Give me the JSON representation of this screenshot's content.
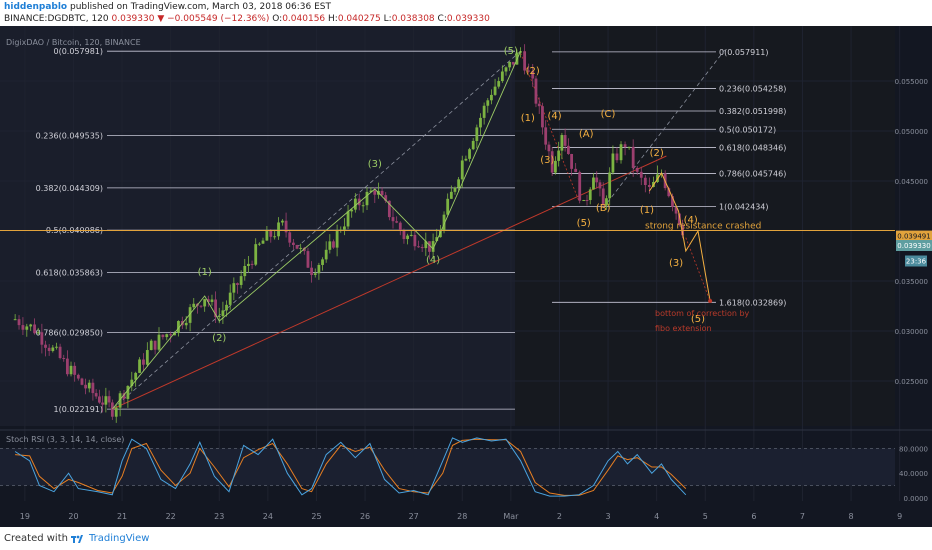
{
  "header": {
    "author": "hiddenpablo",
    "published": "published on TradingView.com, March 03, 2018 06:36 EST",
    "symbol": "BINANCE:DGDBTC, 120",
    "last": "0.039330",
    "change": "−0.005549 (−12.36%)",
    "o_label": "O:",
    "o": "0.040156",
    "h_label": "H:",
    "h": "0.040275",
    "l_label": "L:",
    "l": "0.038308",
    "c_label": "C:",
    "c": "0.039330"
  },
  "footer": {
    "created": "Created with",
    "brand": "TradingView"
  },
  "colors": {
    "background": "#131722",
    "up": "#7cb342",
    "down": "#9c3f6e",
    "wave_green": "#9ccc65",
    "wave_orange": "#f5b041",
    "fib": "#c8c8d8",
    "trend_red": "#c0392b",
    "stoch_k": "#4aa3df",
    "stoch_d": "#e67e22",
    "last_price_bg": "#5f9ea0",
    "resistance": "#e2a33c"
  },
  "chart_data": [
    {
      "type": "line",
      "title": "DigixDAO / Bitcoin, 120, BINANCE",
      "x_ticks": [
        "19",
        "20",
        "21",
        "22",
        "23",
        "24",
        "25",
        "26",
        "27",
        "28",
        "Mar",
        "2",
        "3",
        "4",
        "5",
        "6",
        "7",
        "8",
        "9"
      ],
      "y_ticks": [
        "0.055000",
        "0.050000",
        "0.045000",
        "0.035000",
        "0.030000",
        "0.025000"
      ],
      "ylim": [
        0.0205,
        0.0605
      ],
      "price_labels": {
        "resistance": "0.039491",
        "last": "0.039330",
        "countdown": "23:36"
      },
      "price_path": [
        {
          "day": 18.8,
          "price": 0.0312
        },
        {
          "day": 19.2,
          "price": 0.0302
        },
        {
          "day": 19.5,
          "price": 0.0285
        },
        {
          "day": 19.8,
          "price": 0.0268
        },
        {
          "day": 20.1,
          "price": 0.025
        },
        {
          "day": 20.4,
          "price": 0.0238
        },
        {
          "day": 20.6,
          "price": 0.023
        },
        {
          "day": 20.8,
          "price": 0.02219
        },
        {
          "day": 21.2,
          "price": 0.0252
        },
        {
          "day": 21.6,
          "price": 0.0285
        },
        {
          "day": 22.0,
          "price": 0.03
        },
        {
          "day": 22.4,
          "price": 0.032
        },
        {
          "day": 22.7,
          "price": 0.0335
        },
        {
          "day": 23.0,
          "price": 0.0315
        },
        {
          "day": 23.3,
          "price": 0.034
        },
        {
          "day": 23.6,
          "price": 0.0368
        },
        {
          "day": 23.9,
          "price": 0.039
        },
        {
          "day": 24.3,
          "price": 0.0405
        },
        {
          "day": 24.6,
          "price": 0.0385
        },
        {
          "day": 24.9,
          "price": 0.0362
        },
        {
          "day": 25.2,
          "price": 0.0375
        },
        {
          "day": 25.5,
          "price": 0.0405
        },
        {
          "day": 25.8,
          "price": 0.0425
        },
        {
          "day": 26.2,
          "price": 0.0442
        },
        {
          "day": 26.5,
          "price": 0.0418
        },
        {
          "day": 26.8,
          "price": 0.0395
        },
        {
          "day": 27.1,
          "price": 0.0392
        },
        {
          "day": 27.4,
          "price": 0.0382
        },
        {
          "day": 27.7,
          "price": 0.0425
        },
        {
          "day": 28.0,
          "price": 0.047
        },
        {
          "day": 28.3,
          "price": 0.0505
        },
        {
          "day": 28.6,
          "price": 0.054
        },
        {
          "day": 28.9,
          "price": 0.056
        },
        {
          "day": 29.2,
          "price": 0.05798
        },
        {
          "day": 29.45,
          "price": 0.0545
        },
        {
          "day": 29.65,
          "price": 0.0505
        },
        {
          "day": 29.85,
          "price": 0.0465
        },
        {
          "day": 30.05,
          "price": 0.05
        },
        {
          "day": 30.25,
          "price": 0.0468
        },
        {
          "day": 30.5,
          "price": 0.0423
        },
        {
          "day": 30.7,
          "price": 0.046
        },
        {
          "day": 30.9,
          "price": 0.0423
        },
        {
          "day": 31.1,
          "price": 0.047
        },
        {
          "day": 31.35,
          "price": 0.0488
        },
        {
          "day": 31.6,
          "price": 0.0455
        },
        {
          "day": 31.85,
          "price": 0.044
        },
        {
          "day": 32.1,
          "price": 0.0458
        },
        {
          "day": 32.4,
          "price": 0.042
        },
        {
          "day": 32.6,
          "price": 0.03933
        }
      ],
      "fib_left": [
        {
          "label": "0(0.057981)",
          "price": 0.057981
        },
        {
          "label": "0.236(0.049535)",
          "price": 0.049535
        },
        {
          "label": "0.382(0.044309)",
          "price": 0.044309
        },
        {
          "label": "0.5(0.040086)",
          "price": 0.040086
        },
        {
          "label": "0.618(0.035863)",
          "price": 0.035863
        },
        {
          "label": "0.786(0.029850)",
          "price": 0.02985
        },
        {
          "label": "1(0.022191)",
          "price": 0.022191
        }
      ],
      "fib_right": [
        {
          "label": "0(0.057911)",
          "price": 0.057911
        },
        {
          "label": "0.236(0.054258)",
          "price": 0.054258
        },
        {
          "label": "0.382(0.051998)",
          "price": 0.051998
        },
        {
          "label": "0.5(0.050172)",
          "price": 0.050172
        },
        {
          "label": "0.618(0.048346)",
          "price": 0.048346
        },
        {
          "label": "0.786(0.045746)",
          "price": 0.045746
        },
        {
          "label": "1(0.042434)",
          "price": 0.042434
        },
        {
          "label": "1.618(0.032869)",
          "price": 0.032869
        }
      ],
      "wave_path": [
        {
          "day": 20.8,
          "price": 0.02219
        },
        {
          "day": 22.7,
          "price": 0.0335
        },
        {
          "day": 23.0,
          "price": 0.031
        },
        {
          "day": 26.2,
          "price": 0.0442
        },
        {
          "day": 27.4,
          "price": 0.0382
        },
        {
          "day": 29.2,
          "price": 0.05798
        }
      ],
      "projection_path": [
        {
          "day": 31.85,
          "price": 0.044
        },
        {
          "day": 32.1,
          "price": 0.0458
        },
        {
          "day": 32.45,
          "price": 0.042
        },
        {
          "day": 32.6,
          "price": 0.038
        },
        {
          "day": 32.85,
          "price": 0.04
        },
        {
          "day": 33.1,
          "price": 0.033
        }
      ],
      "wave_labels": [
        {
          "text": "(1)",
          "day": 22.7,
          "price": 0.0356,
          "color": "green"
        },
        {
          "text": "(2)",
          "day": 23.0,
          "price": 0.029,
          "color": "green"
        },
        {
          "text": "(3)",
          "day": 26.2,
          "price": 0.0464,
          "color": "green"
        },
        {
          "text": "(4)",
          "day": 27.4,
          "price": 0.0368,
          "color": "green"
        },
        {
          "text": "(5)",
          "day": 29.0,
          "price": 0.0577,
          "color": "green"
        },
        {
          "text": "(2)",
          "day": 29.45,
          "price": 0.0557,
          "color": "orange"
        },
        {
          "text": "(1)",
          "day": 29.35,
          "price": 0.051,
          "color": "orange"
        },
        {
          "text": "(4)",
          "day": 29.9,
          "price": 0.0512,
          "color": "orange"
        },
        {
          "text": "(3)",
          "day": 29.75,
          "price": 0.0468,
          "color": "orange"
        },
        {
          "text": "(A)",
          "day": 30.55,
          "price": 0.0494,
          "color": "orange"
        },
        {
          "text": "(C)",
          "day": 31.0,
          "price": 0.0514,
          "color": "orange"
        },
        {
          "text": "(5)",
          "day": 30.5,
          "price": 0.0405,
          "color": "orange"
        },
        {
          "text": "(B)",
          "day": 30.9,
          "price": 0.042,
          "color": "orange"
        },
        {
          "text": "(2)",
          "day": 32.0,
          "price": 0.0475,
          "color": "orange"
        },
        {
          "text": "(1)",
          "day": 31.8,
          "price": 0.0418,
          "color": "orange"
        },
        {
          "text": "(4)",
          "day": 32.7,
          "price": 0.0408,
          "color": "orange"
        },
        {
          "text": "(3)",
          "day": 32.4,
          "price": 0.0365,
          "color": "orange"
        },
        {
          "text": "(5)",
          "day": 32.85,
          "price": 0.0309,
          "color": "orange"
        }
      ],
      "annotations": {
        "resistance": "strong resistance crashed",
        "target_line1": "bottom of correction by",
        "target_line2": "fibo extension"
      }
    },
    {
      "type": "line",
      "title": "Stoch RSI (3, 3, 14, 14, close)",
      "y_ticks": [
        "80.0000",
        "40.0000",
        "0.0000"
      ],
      "ylim": [
        -5,
        105
      ],
      "levels": [
        80,
        20
      ],
      "k": [
        {
          "day": 18.8,
          "v": 75
        },
        {
          "day": 19.1,
          "v": 60
        },
        {
          "day": 19.3,
          "v": 20
        },
        {
          "day": 19.6,
          "v": 10
        },
        {
          "day": 19.9,
          "v": 40
        },
        {
          "day": 20.1,
          "v": 15
        },
        {
          "day": 20.5,
          "v": 10
        },
        {
          "day": 20.8,
          "v": 5
        },
        {
          "day": 21.0,
          "v": 60
        },
        {
          "day": 21.2,
          "v": 95
        },
        {
          "day": 21.5,
          "v": 80
        },
        {
          "day": 21.8,
          "v": 30
        },
        {
          "day": 22.1,
          "v": 15
        },
        {
          "day": 22.4,
          "v": 55
        },
        {
          "day": 22.6,
          "v": 90
        },
        {
          "day": 22.9,
          "v": 35
        },
        {
          "day": 23.2,
          "v": 10
        },
        {
          "day": 23.5,
          "v": 85
        },
        {
          "day": 23.8,
          "v": 70
        },
        {
          "day": 24.1,
          "v": 95
        },
        {
          "day": 24.4,
          "v": 40
        },
        {
          "day": 24.7,
          "v": 5
        },
        {
          "day": 24.9,
          "v": 15
        },
        {
          "day": 25.2,
          "v": 70
        },
        {
          "day": 25.5,
          "v": 90
        },
        {
          "day": 25.8,
          "v": 65
        },
        {
          "day": 26.1,
          "v": 88
        },
        {
          "day": 26.4,
          "v": 30
        },
        {
          "day": 26.7,
          "v": 8
        },
        {
          "day": 27.0,
          "v": 12
        },
        {
          "day": 27.3,
          "v": 5
        },
        {
          "day": 27.6,
          "v": 60
        },
        {
          "day": 27.8,
          "v": 97
        },
        {
          "day": 28.0,
          "v": 90
        },
        {
          "day": 28.3,
          "v": 97
        },
        {
          "day": 28.6,
          "v": 92
        },
        {
          "day": 28.9,
          "v": 95
        },
        {
          "day": 29.2,
          "v": 60
        },
        {
          "day": 29.5,
          "v": 10
        },
        {
          "day": 29.8,
          "v": 3
        },
        {
          "day": 30.1,
          "v": 3
        },
        {
          "day": 30.4,
          "v": 5
        },
        {
          "day": 30.7,
          "v": 20
        },
        {
          "day": 31.0,
          "v": 60
        },
        {
          "day": 31.2,
          "v": 75
        },
        {
          "day": 31.4,
          "v": 55
        },
        {
          "day": 31.6,
          "v": 70
        },
        {
          "day": 31.9,
          "v": 40
        },
        {
          "day": 32.1,
          "v": 55
        },
        {
          "day": 32.3,
          "v": 30
        },
        {
          "day": 32.6,
          "v": 5
        }
      ],
      "d": [
        {
          "day": 18.8,
          "v": 70
        },
        {
          "day": 19.1,
          "v": 68
        },
        {
          "day": 19.3,
          "v": 35
        },
        {
          "day": 19.6,
          "v": 15
        },
        {
          "day": 19.9,
          "v": 30
        },
        {
          "day": 20.1,
          "v": 25
        },
        {
          "day": 20.5,
          "v": 12
        },
        {
          "day": 20.8,
          "v": 8
        },
        {
          "day": 21.0,
          "v": 35
        },
        {
          "day": 21.2,
          "v": 80
        },
        {
          "day": 21.5,
          "v": 88
        },
        {
          "day": 21.8,
          "v": 45
        },
        {
          "day": 22.1,
          "v": 20
        },
        {
          "day": 22.4,
          "v": 40
        },
        {
          "day": 22.6,
          "v": 80
        },
        {
          "day": 22.9,
          "v": 50
        },
        {
          "day": 23.2,
          "v": 18
        },
        {
          "day": 23.5,
          "v": 65
        },
        {
          "day": 23.8,
          "v": 78
        },
        {
          "day": 24.1,
          "v": 88
        },
        {
          "day": 24.4,
          "v": 55
        },
        {
          "day": 24.7,
          "v": 15
        },
        {
          "day": 24.9,
          "v": 10
        },
        {
          "day": 25.2,
          "v": 55
        },
        {
          "day": 25.5,
          "v": 85
        },
        {
          "day": 25.8,
          "v": 75
        },
        {
          "day": 26.1,
          "v": 82
        },
        {
          "day": 26.4,
          "v": 45
        },
        {
          "day": 26.7,
          "v": 15
        },
        {
          "day": 27.0,
          "v": 10
        },
        {
          "day": 27.3,
          "v": 8
        },
        {
          "day": 27.6,
          "v": 40
        },
        {
          "day": 27.8,
          "v": 85
        },
        {
          "day": 28.0,
          "v": 93
        },
        {
          "day": 28.3,
          "v": 95
        },
        {
          "day": 28.6,
          "v": 94
        },
        {
          "day": 28.9,
          "v": 94
        },
        {
          "day": 29.2,
          "v": 75
        },
        {
          "day": 29.5,
          "v": 25
        },
        {
          "day": 29.8,
          "v": 8
        },
        {
          "day": 30.1,
          "v": 4
        },
        {
          "day": 30.4,
          "v": 4
        },
        {
          "day": 30.7,
          "v": 12
        },
        {
          "day": 31.0,
          "v": 45
        },
        {
          "day": 31.2,
          "v": 68
        },
        {
          "day": 31.4,
          "v": 62
        },
        {
          "day": 31.6,
          "v": 65
        },
        {
          "day": 31.9,
          "v": 50
        },
        {
          "day": 32.1,
          "v": 50
        },
        {
          "day": 32.3,
          "v": 38
        },
        {
          "day": 32.6,
          "v": 15
        }
      ]
    }
  ]
}
